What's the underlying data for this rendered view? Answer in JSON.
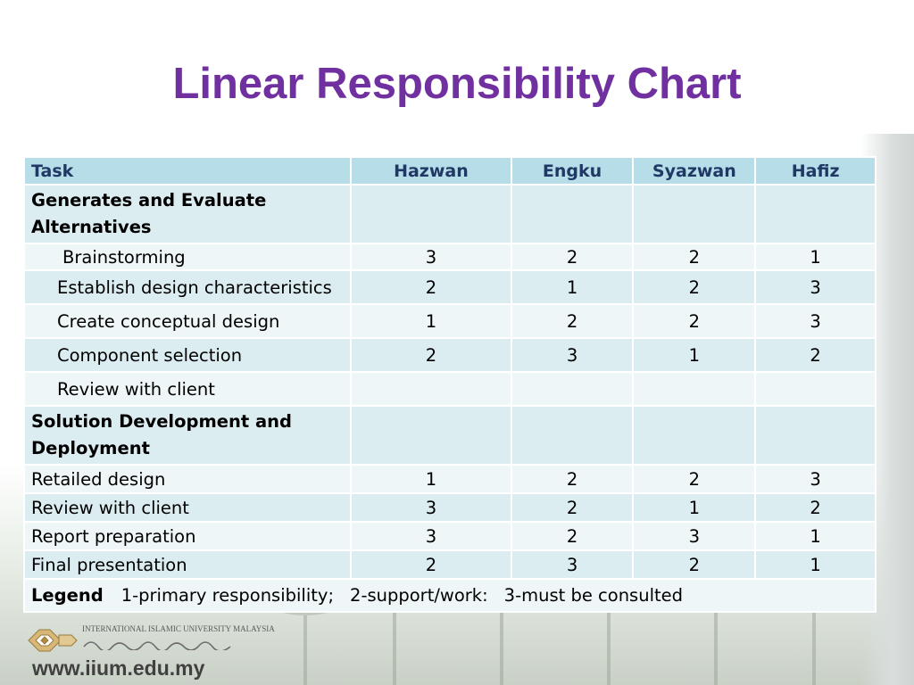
{
  "title": "Linear Responsibility Chart",
  "table": {
    "headers": [
      "Task",
      "Hazwan",
      "Engku",
      "Syazwan",
      "Hafiz"
    ],
    "rows": [
      {
        "task": "Generates and Evaluate Alternatives",
        "type": "section",
        "values": [
          "",
          "",
          "",
          ""
        ]
      },
      {
        "task": "Brainstorming",
        "type": "sub",
        "values": [
          "3",
          "2",
          "2",
          "1"
        ]
      },
      {
        "task": "Establish design characteristics",
        "type": "sub",
        "values": [
          "2",
          "1",
          "2",
          "3"
        ]
      },
      {
        "task": "Create conceptual design",
        "type": "sub",
        "values": [
          "1",
          "2",
          "2",
          "3"
        ]
      },
      {
        "task": "Component selection",
        "type": "sub",
        "values": [
          "2",
          "3",
          "1",
          "2"
        ]
      },
      {
        "task": "Review with client",
        "type": "sub",
        "values": [
          "",
          "",
          "",
          ""
        ]
      },
      {
        "task": "Solution Development  and Deployment",
        "type": "section",
        "values": [
          "",
          "",
          "",
          ""
        ]
      },
      {
        "task": "Retailed design",
        "type": "plain",
        "values": [
          "1",
          "2",
          "2",
          "3"
        ]
      },
      {
        "task": "Review with client",
        "type": "plain",
        "values": [
          "3",
          "2",
          "1",
          "2"
        ]
      },
      {
        "task": "Report preparation",
        "type": "plain",
        "values": [
          "3",
          "2",
          "3",
          "1"
        ]
      },
      {
        "task": "Final presentation",
        "type": "plain",
        "values": [
          "2",
          "3",
          "2",
          "1"
        ]
      }
    ],
    "legend": {
      "label": "Legend",
      "items": [
        "1-primary responsibility;",
        "2-support/work:",
        "3-must be consulted"
      ]
    }
  },
  "footer": {
    "logo_text": "INTERNATIONAL ISLAMIC UNIVERSITY MALAYSIA",
    "url": "www.iium.edu.my"
  },
  "colors": {
    "title": "#7030a0",
    "header_bg": "#b7dde8",
    "header_text": "#1f3864",
    "row_band_1": "#dcedf2",
    "row_band_2": "#eef6f8"
  }
}
